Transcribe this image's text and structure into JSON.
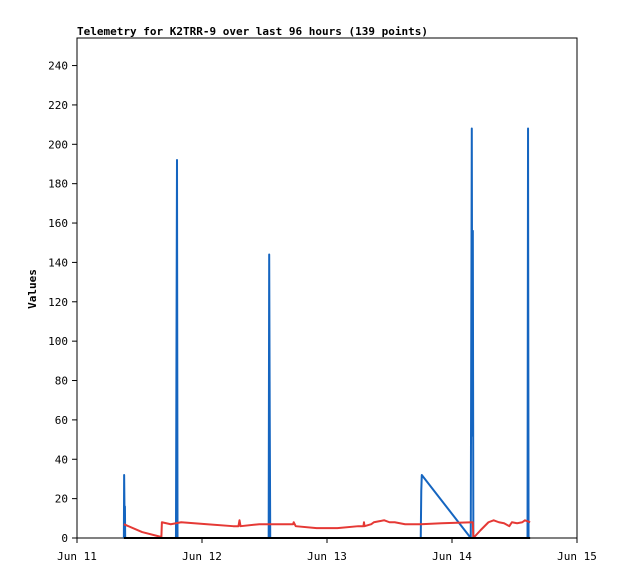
{
  "chart_data": {
    "type": "line",
    "title": "Telemetry for K2TRR-9 over last 96 hours (139 points)",
    "xlabel": "",
    "ylabel": "Values",
    "x_ticks": [
      "Jun 11",
      "Jun 12",
      "Jun 13",
      "Jun 14",
      "Jun 15"
    ],
    "x_tick_hours": [
      0,
      24,
      48,
      72,
      96
    ],
    "xlim_hours": [
      0,
      96
    ],
    "ylim": [
      0,
      254
    ],
    "y_ticks": [
      0,
      20,
      40,
      60,
      80,
      100,
      120,
      140,
      160,
      180,
      200,
      220,
      240
    ],
    "grid": false,
    "series": [
      {
        "color": "#1565c0",
        "points": [
          [
            9.0,
            0
          ],
          [
            9.05,
            32
          ],
          [
            9.15,
            6
          ],
          [
            9.2,
            16
          ],
          [
            9.25,
            0
          ],
          [
            19.0,
            0
          ],
          [
            19.1,
            96
          ],
          [
            19.2,
            192
          ],
          [
            19.3,
            0
          ],
          [
            36.8,
            0
          ],
          [
            36.9,
            144
          ],
          [
            37.0,
            64
          ],
          [
            37.1,
            0
          ],
          [
            66.0,
            0
          ],
          [
            66.1,
            24
          ],
          [
            66.2,
            32
          ],
          [
            75.6,
            0
          ],
          [
            75.7,
            104
          ],
          [
            75.8,
            208
          ],
          [
            75.9,
            52
          ],
          [
            76.0,
            156
          ],
          [
            76.1,
            0
          ],
          [
            86.5,
            0
          ],
          [
            86.6,
            208
          ],
          [
            86.7,
            0
          ]
        ]
      },
      {
        "color": "#e53935",
        "points": [
          [
            9.0,
            7
          ],
          [
            12.5,
            3
          ],
          [
            16.2,
            0.5
          ],
          [
            16.3,
            8
          ],
          [
            18.0,
            7
          ],
          [
            20.0,
            8
          ],
          [
            25.0,
            7
          ],
          [
            30.0,
            6
          ],
          [
            31.0,
            6
          ],
          [
            31.2,
            9
          ],
          [
            31.4,
            6
          ],
          [
            35.0,
            7
          ],
          [
            40.0,
            7
          ],
          [
            41.5,
            7
          ],
          [
            41.6,
            8
          ],
          [
            42.0,
            6
          ],
          [
            46.0,
            5
          ],
          [
            50.0,
            5
          ],
          [
            54.0,
            6
          ],
          [
            55.0,
            6
          ],
          [
            55.1,
            8
          ],
          [
            55.2,
            6
          ],
          [
            56.5,
            7
          ],
          [
            57.0,
            8
          ],
          [
            58.0,
            8.5
          ],
          [
            59.0,
            9
          ],
          [
            60.0,
            8
          ],
          [
            61.0,
            8
          ],
          [
            63.0,
            7
          ],
          [
            66.0,
            7
          ],
          [
            70.0,
            7.5
          ],
          [
            76.0,
            8
          ],
          [
            76.1,
            0
          ],
          [
            77.5,
            4
          ],
          [
            79.0,
            8
          ],
          [
            80.0,
            9
          ],
          [
            81.0,
            8
          ],
          [
            82.0,
            7.5
          ],
          [
            83.0,
            6
          ],
          [
            83.5,
            8
          ],
          [
            84.5,
            7.5
          ],
          [
            85.5,
            8
          ],
          [
            86.0,
            9
          ],
          [
            86.5,
            8.5
          ],
          [
            87.0,
            8
          ]
        ]
      },
      {
        "color": "#000000",
        "points": [
          [
            9.0,
            0
          ],
          [
            87.0,
            0
          ]
        ]
      }
    ]
  }
}
